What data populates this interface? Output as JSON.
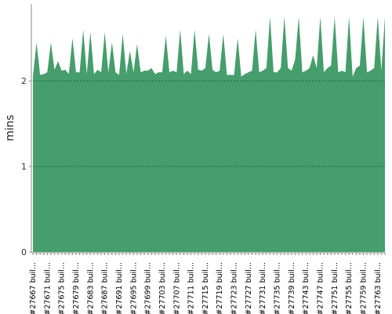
{
  "chart_data": {
    "type": "area",
    "y_label": "mins",
    "color": "#459e6b",
    "categories": [
      "#27667 buil...",
      null,
      null,
      null,
      "#27671 buil...",
      null,
      null,
      null,
      "#27675 buil...",
      null,
      null,
      null,
      "#27679 buil...",
      null,
      null,
      null,
      "#27683 buil...",
      null,
      null,
      null,
      "#27687 buil...",
      null,
      null,
      null,
      "#27691 buil...",
      null,
      null,
      null,
      "#27695 buil...",
      null,
      null,
      null,
      "#27699 buil...",
      null,
      null,
      null,
      "#27703 buil...",
      null,
      null,
      null,
      "#27707 buil...",
      null,
      null,
      null,
      "#27711 buil...",
      null,
      null,
      null,
      "#27715 buil...",
      null,
      null,
      null,
      "#27719 buil...",
      null,
      null,
      null,
      "#27723 buil...",
      null,
      null,
      null,
      "#27727 buil...",
      null,
      null,
      null,
      "#27731 buil...",
      null,
      null,
      null,
      "#27735 buil...",
      null,
      null,
      null,
      "#27739 buil...",
      null,
      null,
      null,
      "#27743 buil...",
      null,
      null,
      null,
      "#27747 buil...",
      null,
      null,
      null,
      "#27751 buil...",
      null,
      null,
      null,
      "#27755 buil...",
      null,
      null,
      null,
      "#27759 buil...",
      null,
      null,
      null,
      "#27763 buil...",
      null,
      null
    ],
    "values": [
      2.05,
      2.45,
      2.07,
      2.08,
      2.1,
      2.45,
      2.13,
      2.23,
      2.12,
      2.13,
      2.08,
      2.5,
      2.1,
      2.1,
      2.6,
      2.08,
      2.57,
      2.08,
      2.13,
      2.1,
      2.57,
      2.1,
      2.45,
      2.1,
      2.07,
      2.55,
      2.08,
      2.35,
      2.1,
      2.43,
      2.1,
      2.12,
      2.12,
      2.15,
      2.08,
      2.1,
      2.1,
      2.53,
      2.1,
      2.12,
      2.1,
      2.6,
      2.08,
      2.12,
      2.08,
      2.6,
      2.13,
      2.12,
      2.15,
      2.55,
      2.13,
      2.1,
      2.12,
      2.55,
      2.07,
      2.07,
      2.07,
      2.5,
      2.05,
      2.08,
      2.1,
      2.12,
      2.6,
      2.1,
      2.12,
      2.15,
      2.75,
      2.1,
      2.1,
      2.15,
      2.75,
      2.15,
      2.12,
      2.25,
      2.75,
      2.1,
      2.12,
      2.15,
      2.3,
      2.15,
      2.75,
      2.1,
      2.15,
      2.18,
      2.75,
      2.1,
      2.12,
      2.1,
      2.75,
      2.05,
      2.15,
      2.18,
      2.75,
      2.1,
      2.12,
      2.15,
      2.75,
      2.12,
      2.75
    ],
    "ylim": [
      0,
      2.9
    ],
    "yticks": [
      0,
      1,
      2
    ],
    "grid": true
  }
}
